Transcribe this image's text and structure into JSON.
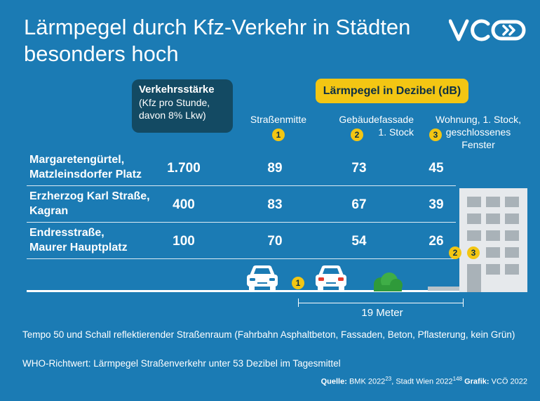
{
  "title": "Lärmpegel durch Kfz-Verkehr in Städten besonders hoch",
  "logo_text": "VCÖ",
  "traffic_header": {
    "title": "Verkehrsstärke",
    "subtitle": "(Kfz pro Stunde, davon 8% Lkw)"
  },
  "noise_header": "Lärmpegel in Dezibel (dB)",
  "columns": [
    {
      "label": "Straßenmitte",
      "badge": "1"
    },
    {
      "label": "Gebäudefassade 1. Stock",
      "badge": "2"
    },
    {
      "label": "Wohnung, 1. Stock, geschlossenes Fenster",
      "badge": "3"
    }
  ],
  "rows": [
    {
      "line1": "Margaretengürtel,",
      "line2": "Matzleinsdorfer Platz",
      "traffic": "1.700",
      "mid": "89",
      "facade": "73",
      "flat": "45"
    },
    {
      "line1": "Erzherzog Karl Straße,",
      "line2": "Kagran",
      "traffic": "400",
      "mid": "83",
      "facade": "67",
      "flat": "39"
    },
    {
      "line1": "Endresstraße,",
      "line2": "Maurer Hauptplatz",
      "traffic": "100",
      "mid": "70",
      "facade": "54",
      "flat": "26"
    }
  ],
  "illustration": {
    "badge_road": "1",
    "badge_facade": "2",
    "badge_flat": "3",
    "distance_label": "19 Meter"
  },
  "footer": {
    "note": "Tempo 50 und Schall reflektierender Straßenraum (Fahrbahn Asphaltbeton, Fassaden, Beton, Pflasterung, kein Grün)",
    "who": "WHO-Richtwert: Lärmpegel Straßenverkehr unter 53 Dezibel im Tagesmittel"
  },
  "source": {
    "label": "Quelle:",
    "text1": "BMK 2022",
    "sup1": "23",
    "text2": ", Stadt Wien 2022",
    "sup2": "148",
    "graphic_label": "Grafik:",
    "graphic": "VCÖ 2022"
  },
  "colors": {
    "background": "#1b7bb4",
    "accent_yellow": "#f3c613",
    "dark_box": "#134a63"
  }
}
